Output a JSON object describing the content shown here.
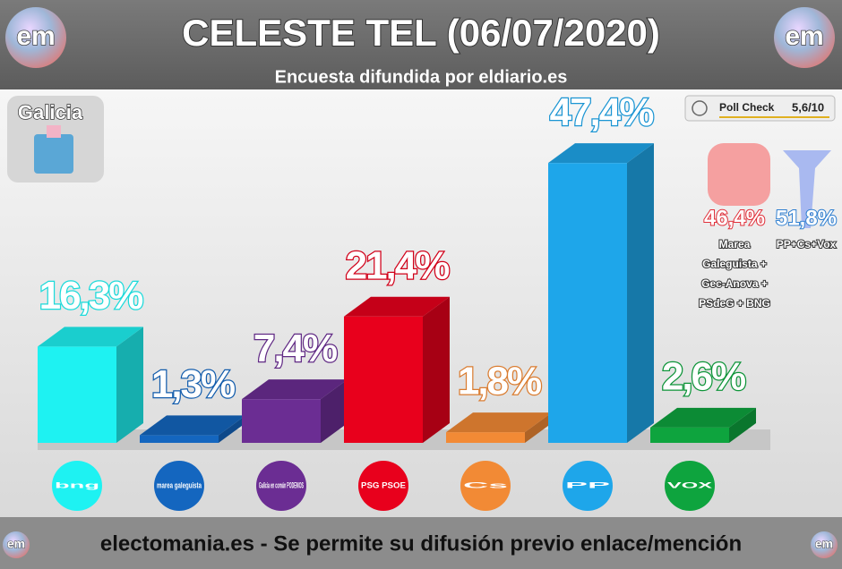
{
  "logo": "em",
  "chart_data": {
    "type": "bar3d",
    "title": "CELESTE TEL (06/07/2020)",
    "subtitle": "Encuesta difundida por eldiario.es",
    "region": "Galicia",
    "poll_check": {
      "label": "Poll Check",
      "score": "5,6/10"
    },
    "categories": [
      "bng",
      "marea galeguista",
      "Galicia en común PODEMOS",
      "PSG PSOE",
      "Cs",
      "PP",
      "VOX"
    ],
    "values": [
      16.3,
      1.3,
      7.4,
      21.4,
      1.8,
      47.4,
      2.6
    ],
    "value_labels": [
      "16,3%",
      "1,3%",
      "7,4%",
      "21,4%",
      "1,8%",
      "47,4%",
      "2,6%"
    ],
    "colors": [
      "#1ef2f2",
      "#1466bf",
      "#6b2d93",
      "#e8001c",
      "#f28a35",
      "#1ea6ea",
      "#0ea43e"
    ],
    "blocs": [
      {
        "value": 46.4,
        "value_label": "46,4%",
        "label_lines": [
          "Marea",
          "Galeguista +",
          "Gec-Anova +",
          "PSdeG + BNG"
        ],
        "color": "#e0303a"
      },
      {
        "value": 51.8,
        "value_label": "51,8%",
        "label_lines": [
          "PP+Cs+Vox"
        ],
        "color": "#2f7fd0"
      }
    ]
  },
  "footer": "electomania.es - Se permite su difusión previo enlace/mención"
}
